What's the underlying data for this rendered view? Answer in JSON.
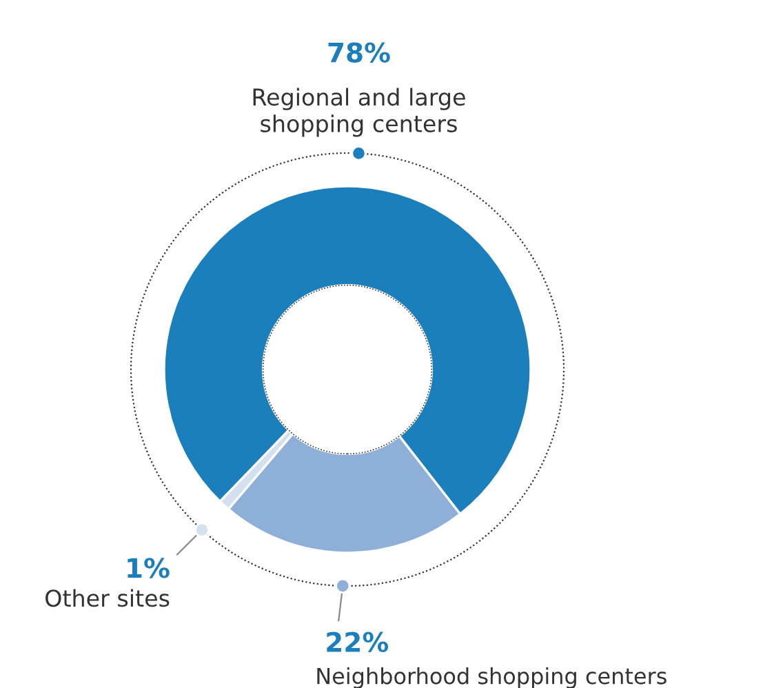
{
  "chart_data": {
    "type": "donut",
    "categories": [
      "Regional and large\nshopping centers",
      "Neighborhood shopping centers",
      "Other sites"
    ],
    "values": [
      78,
      22,
      1
    ],
    "colors": [
      "#1a7fba",
      "#8eafd7",
      "#d3e0ef"
    ],
    "value_labels": [
      "78%",
      "22%",
      "1%"
    ]
  }
}
